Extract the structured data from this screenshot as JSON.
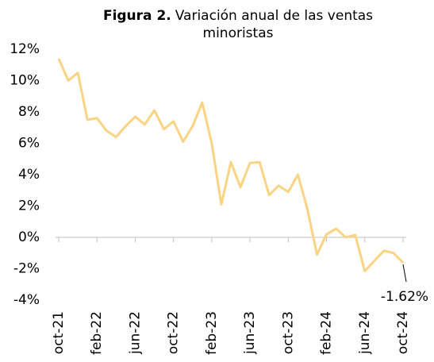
{
  "chart_data": {
    "type": "line",
    "title_label": "Figura 2.",
    "title": "Variación anual de las ventas",
    "title_line2": "minoristas",
    "categories": [
      "oct-21",
      null,
      null,
      null,
      "feb-22",
      null,
      null,
      null,
      "jun-22",
      null,
      null,
      null,
      "oct-22",
      null,
      null,
      null,
      "feb-23",
      null,
      null,
      null,
      "jun-23",
      null,
      null,
      null,
      "oct-23",
      null,
      null,
      null,
      "feb-24",
      null,
      null,
      null,
      "jun-24",
      null,
      null,
      null,
      "oct-24"
    ],
    "series": [
      {
        "color": "#fad383",
        "values": [
          11.4,
          10.0,
          10.5,
          7.5,
          7.6,
          6.8,
          6.4,
          7.1,
          7.7,
          7.2,
          8.1,
          6.9,
          7.4,
          6.1,
          7.1,
          8.6,
          6.0,
          2.1,
          4.8,
          3.2,
          4.75,
          4.8,
          2.7,
          3.3,
          2.9,
          4.0,
          1.8,
          -1.1,
          0.2,
          0.55,
          0.0,
          0.15,
          -2.15,
          -1.5,
          -0.85,
          -1.0,
          -1.62
        ],
        "value_labels": [
          null,
          null,
          null,
          null,
          null,
          null,
          null,
          null,
          null,
          null,
          null,
          null,
          null,
          null,
          null,
          null,
          null,
          null,
          null,
          null,
          null,
          null,
          null,
          null,
          null,
          null,
          null,
          null,
          null,
          null,
          null,
          null,
          null,
          null,
          null,
          null,
          "-1.62%"
        ]
      }
    ],
    "ylim": [
      -4,
      12
    ],
    "yticks": [
      {
        "value": -4,
        "label": "-4%"
      },
      {
        "value": -2,
        "label": "-2%"
      },
      {
        "value": 0,
        "label": "0%"
      },
      {
        "value": 2,
        "label": "2%"
      },
      {
        "value": 4,
        "label": "4%"
      },
      {
        "value": 6,
        "label": "6%"
      },
      {
        "value": 8,
        "label": "8%"
      },
      {
        "value": 10,
        "label": "10%"
      },
      {
        "value": 12,
        "label": "12%"
      }
    ]
  }
}
